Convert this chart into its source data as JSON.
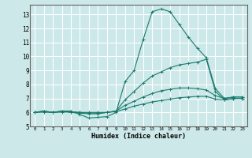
{
  "xlabel": "Humidex (Indice chaleur)",
  "xlim": [
    -0.5,
    23.5
  ],
  "ylim": [
    5,
    13.7
  ],
  "yticks": [
    5,
    6,
    7,
    8,
    9,
    10,
    11,
    12,
    13
  ],
  "xticks": [
    0,
    1,
    2,
    3,
    4,
    5,
    6,
    7,
    8,
    9,
    10,
    11,
    12,
    13,
    14,
    15,
    16,
    17,
    18,
    19,
    20,
    21,
    22,
    23
  ],
  "bg_color": "#cce8e8",
  "grid_color": "#ffffff",
  "line_color": "#1a7a6e",
  "lines": [
    {
      "x": [
        0,
        1,
        2,
        3,
        4,
        5,
        6,
        7,
        8,
        9,
        10,
        11,
        12,
        13,
        14,
        15,
        16,
        17,
        18,
        19,
        20,
        21,
        22,
        23
      ],
      "y": [
        6.0,
        6.1,
        6.0,
        6.1,
        6.1,
        5.85,
        5.6,
        5.65,
        5.7,
        6.0,
        8.2,
        9.0,
        11.2,
        13.2,
        13.4,
        13.2,
        12.3,
        11.4,
        10.6,
        9.9,
        7.7,
        7.0,
        7.1,
        7.1
      ]
    },
    {
      "x": [
        0,
        1,
        2,
        3,
        4,
        5,
        6,
        7,
        8,
        9,
        10,
        11,
        12,
        13,
        14,
        15,
        16,
        17,
        18,
        19,
        20,
        21,
        22,
        23
      ],
      "y": [
        6.0,
        6.1,
        6.0,
        6.1,
        6.0,
        5.95,
        5.9,
        5.9,
        6.0,
        6.1,
        6.9,
        7.5,
        8.1,
        8.6,
        8.9,
        9.2,
        9.4,
        9.5,
        9.6,
        9.8,
        7.5,
        6.9,
        7.0,
        7.0
      ]
    },
    {
      "x": [
        0,
        1,
        2,
        3,
        4,
        5,
        6,
        7,
        8,
        9,
        10,
        11,
        12,
        13,
        14,
        15,
        16,
        17,
        18,
        19,
        20,
        21,
        22,
        23
      ],
      "y": [
        6.0,
        6.05,
        6.0,
        6.05,
        6.05,
        6.0,
        5.95,
        5.95,
        6.0,
        6.1,
        6.5,
        6.8,
        7.1,
        7.35,
        7.55,
        7.65,
        7.75,
        7.75,
        7.7,
        7.6,
        7.2,
        7.0,
        7.1,
        7.1
      ]
    },
    {
      "x": [
        0,
        1,
        2,
        3,
        4,
        5,
        6,
        7,
        8,
        9,
        10,
        11,
        12,
        13,
        14,
        15,
        16,
        17,
        18,
        19,
        20,
        21,
        22,
        23
      ],
      "y": [
        6.0,
        6.02,
        6.0,
        6.02,
        6.02,
        6.0,
        6.0,
        6.0,
        6.0,
        6.05,
        6.25,
        6.45,
        6.6,
        6.75,
        6.85,
        6.95,
        7.05,
        7.1,
        7.15,
        7.15,
        6.95,
        6.9,
        7.0,
        7.0
      ]
    }
  ]
}
